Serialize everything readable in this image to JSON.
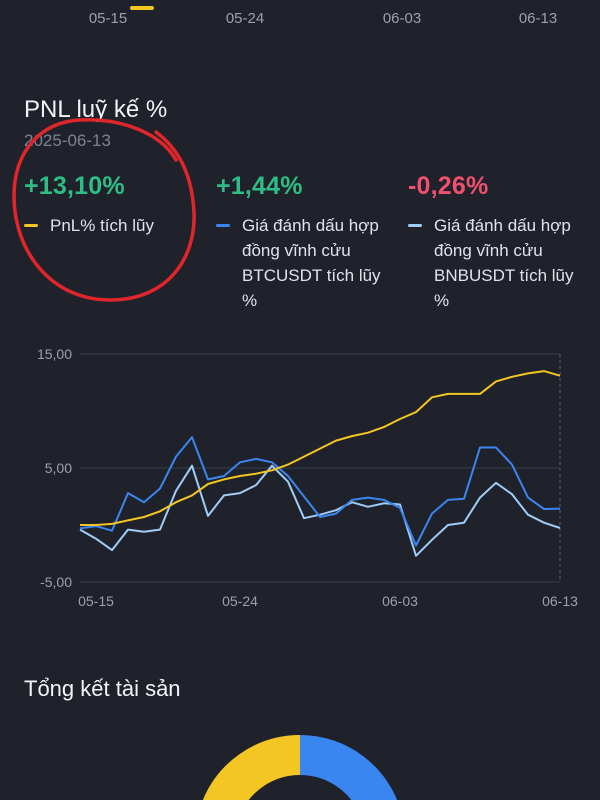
{
  "top_axis": {
    "ticks": [
      "05-15",
      "05-24",
      "06-03",
      "06-13"
    ]
  },
  "pnl": {
    "title": "PNL luỹ kế %",
    "date": "2025-06-13",
    "metrics": [
      {
        "value": "+13,10%",
        "value_color": "#2ebd85",
        "legend": "PnL% tích lũy",
        "legend_color": "#f3c623"
      },
      {
        "value": "+1,44%",
        "value_color": "#2ebd85",
        "legend": "Giá đánh dấu hợp đồng vĩnh cửu BTCUSDT tích lũy %",
        "legend_color": "#3a86f0"
      },
      {
        "value": "-0,26%",
        "value_color": "#f0506e",
        "legend": "Giá đánh dấu hợp đồng vĩnh cửu BNBUSDT tích lũy %",
        "legend_color": "#9fcdf7"
      }
    ]
  },
  "chart_data": {
    "type": "line",
    "x": [
      "05-14",
      "05-15",
      "05-16",
      "05-17",
      "05-18",
      "05-19",
      "05-20",
      "05-21",
      "05-22",
      "05-23",
      "05-24",
      "05-25",
      "05-26",
      "05-27",
      "05-28",
      "05-29",
      "05-30",
      "05-31",
      "06-01",
      "06-02",
      "06-03",
      "06-04",
      "06-05",
      "06-06",
      "06-07",
      "06-08",
      "06-09",
      "06-10",
      "06-11",
      "06-12",
      "06-13"
    ],
    "series": [
      {
        "name": "PnL% tích lũy",
        "color": "#f3c623",
        "values": [
          0.0,
          0.0,
          0.1,
          0.4,
          0.7,
          1.2,
          2.0,
          2.6,
          3.6,
          4.0,
          4.3,
          4.5,
          4.8,
          5.3,
          6.0,
          6.7,
          7.4,
          7.8,
          8.1,
          8.6,
          9.3,
          9.9,
          11.2,
          11.5,
          11.5,
          11.5,
          12.6,
          13.0,
          13.3,
          13.5,
          13.1
        ]
      },
      {
        "name": "Giá đánh dấu hợp đồng vĩnh cửu BTCUSDT tích lũy %",
        "color": "#3a86f0",
        "values": [
          -0.3,
          -0.1,
          -0.5,
          2.8,
          2.0,
          3.2,
          6.0,
          7.7,
          4.0,
          4.3,
          5.5,
          5.8,
          5.5,
          4.3,
          2.5,
          0.7,
          1.0,
          2.2,
          2.4,
          2.2,
          1.5,
          -1.8,
          1.0,
          2.2,
          2.3,
          6.8,
          6.8,
          5.3,
          2.4,
          1.4,
          1.44
        ]
      },
      {
        "name": "Giá đánh dấu hợp đồng vĩnh cửu BNBUSDT tích lũy %",
        "color": "#9fcdf7",
        "values": [
          -0.4,
          -1.2,
          -2.2,
          -0.4,
          -0.6,
          -0.4,
          3.0,
          5.2,
          0.8,
          2.6,
          2.8,
          3.5,
          5.2,
          3.8,
          0.6,
          0.9,
          1.3,
          2.0,
          1.6,
          1.9,
          1.8,
          -2.7,
          -1.3,
          0.0,
          0.2,
          2.4,
          3.7,
          2.7,
          0.9,
          0.2,
          -0.26
        ]
      }
    ],
    "ylim": [
      -5,
      15
    ],
    "yticks": [
      "15,00",
      "5,00",
      "-5,00"
    ],
    "yticks_values": [
      15,
      5,
      -5
    ],
    "xticks": [
      "05-15",
      "05-24",
      "06-03",
      "06-13"
    ],
    "xticks_index": [
      1,
      10,
      20,
      30
    ],
    "grid": true,
    "title": "",
    "xlabel": "",
    "ylabel": ""
  },
  "assets": {
    "title": "Tổng kết tài sản",
    "donut_colors": [
      "#f3c623",
      "#3a86f0",
      "#2c303b"
    ]
  },
  "annotation_color": "#e0262b"
}
